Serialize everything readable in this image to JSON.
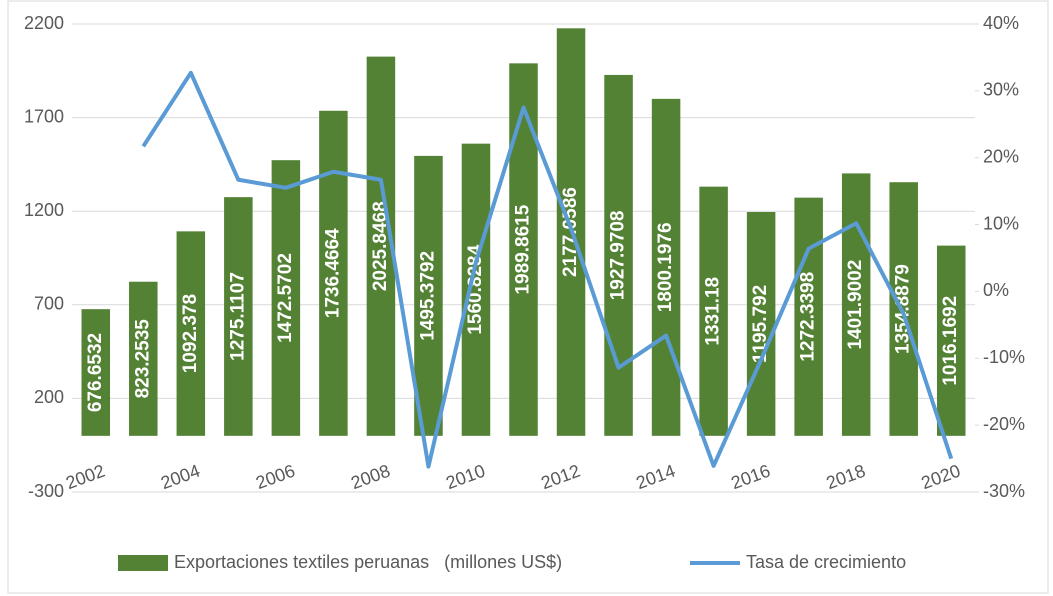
{
  "chart_data": {
    "type": "bar",
    "categories": [
      "2002",
      null,
      "2004",
      null,
      "2006",
      null,
      "2008",
      null,
      "2010",
      null,
      "2012",
      null,
      "2014",
      null,
      "2016",
      null,
      "2018",
      null,
      "2020"
    ],
    "series": [
      {
        "name": "Exportaciones textiles peruanas   (millones US$)",
        "color": "#548235",
        "type": "bar",
        "values": [
          676.6532,
          823.2535,
          1092.378,
          1275.1107,
          1472.5702,
          1736.4664,
          2025.8468,
          1495.3792,
          1560.8284,
          1989.8615,
          2177.0586,
          1927.9708,
          1800.1976,
          1331.18,
          1195.792,
          1272.3398,
          1401.9002,
          1354.8879,
          1016.1692
        ]
      },
      {
        "name": "Tasa de crecimiento",
        "color": "#5b9bd5",
        "type": "line",
        "axis": "y2",
        "values": [
          null,
          21.7,
          32.7,
          16.7,
          15.5,
          17.9,
          16.7,
          -26.2,
          4.4,
          27.5,
          9.4,
          -11.4,
          -6.6,
          -26.1,
          -10.2,
          6.4,
          10.2,
          -3.4,
          -25.0
        ]
      }
    ],
    "ylim": [
      -300,
      2200
    ],
    "yticks": [
      -300,
      200,
      700,
      1200,
      1700,
      2200
    ],
    "y2lim": [
      -30,
      40
    ],
    "y2ticks": [
      {
        "value": -30,
        "label": "-30%"
      },
      {
        "value": -20,
        "label": "-20%"
      },
      {
        "value": -10,
        "label": "-10%"
      },
      {
        "value": 0,
        "label": "0%"
      },
      {
        "value": 10,
        "label": "10%"
      },
      {
        "value": 20,
        "label": "20%"
      },
      {
        "value": 30,
        "label": "30%"
      },
      {
        "value": 40,
        "label": "40%"
      }
    ],
    "grid": true,
    "legend": "bottom"
  }
}
